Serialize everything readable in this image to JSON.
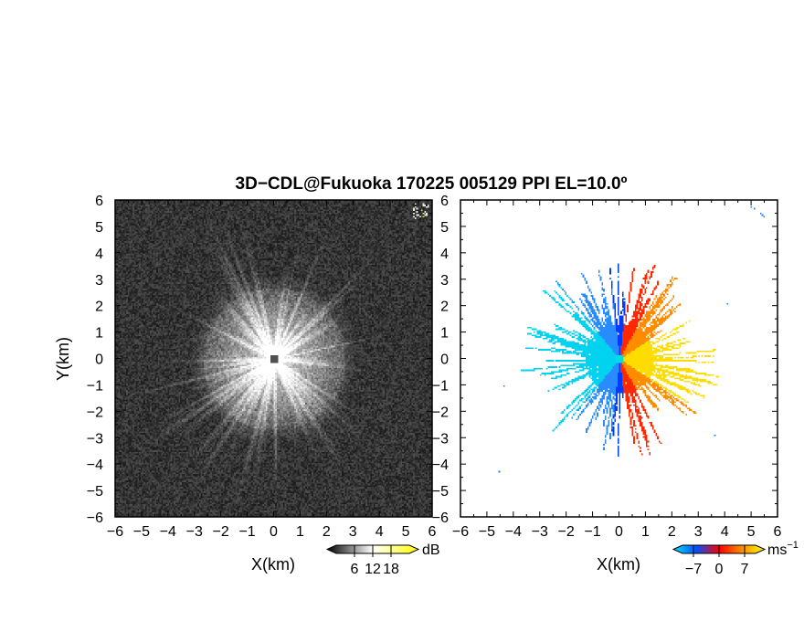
{
  "chart_data": [
    {
      "type": "heatmap",
      "panel": "reflectivity",
      "title": "3D−CDL@Fukuoka 170225 005129 PPI EL=10.0º",
      "xlabel": "X(km)",
      "ylabel": "Y(km)",
      "xlim": [
        -6,
        6
      ],
      "ylim": [
        -6,
        6
      ],
      "xticks": [
        "−6",
        "−5",
        "−4",
        "−3",
        "−2",
        "−1",
        "0",
        "1",
        "2",
        "3",
        "4",
        "5",
        "6"
      ],
      "yticks": [
        "−6",
        "−5",
        "−4",
        "−3",
        "−2",
        "−1",
        "0",
        "1",
        "2",
        "3",
        "4",
        "5",
        "6"
      ],
      "colorbar": {
        "unit": "dB",
        "ticks": [
          "6",
          "12",
          "18"
        ],
        "tick_values": [
          6,
          12,
          18
        ],
        "range": [
          0,
          24
        ],
        "colors": [
          "#000000",
          "#ffffff",
          "#ffff00"
        ]
      }
    },
    {
      "type": "heatmap",
      "panel": "doppler_velocity",
      "xlabel": "X(km)",
      "xlim": [
        -6,
        6
      ],
      "ylim": [
        -6,
        6
      ],
      "xticks": [
        "−6",
        "−5",
        "−4",
        "−3",
        "−2",
        "−1",
        "0",
        "1",
        "2",
        "3",
        "4",
        "5",
        "6"
      ],
      "yticks": [
        "−6",
        "−5",
        "−4",
        "−3",
        "−2",
        "−1",
        "0",
        "1",
        "2",
        "3",
        "4",
        "5",
        "6"
      ],
      "colorbar": {
        "unit": "ms",
        "unit_exp": "−1",
        "ticks": [
          "−7",
          "0",
          "7"
        ],
        "tick_values": [
          -7,
          0,
          7
        ],
        "range": [
          -10,
          10
        ],
        "colors": [
          "#00e5ff",
          "#0050ff",
          "#ff0000",
          "#ff8c00",
          "#ffff00"
        ]
      }
    }
  ]
}
